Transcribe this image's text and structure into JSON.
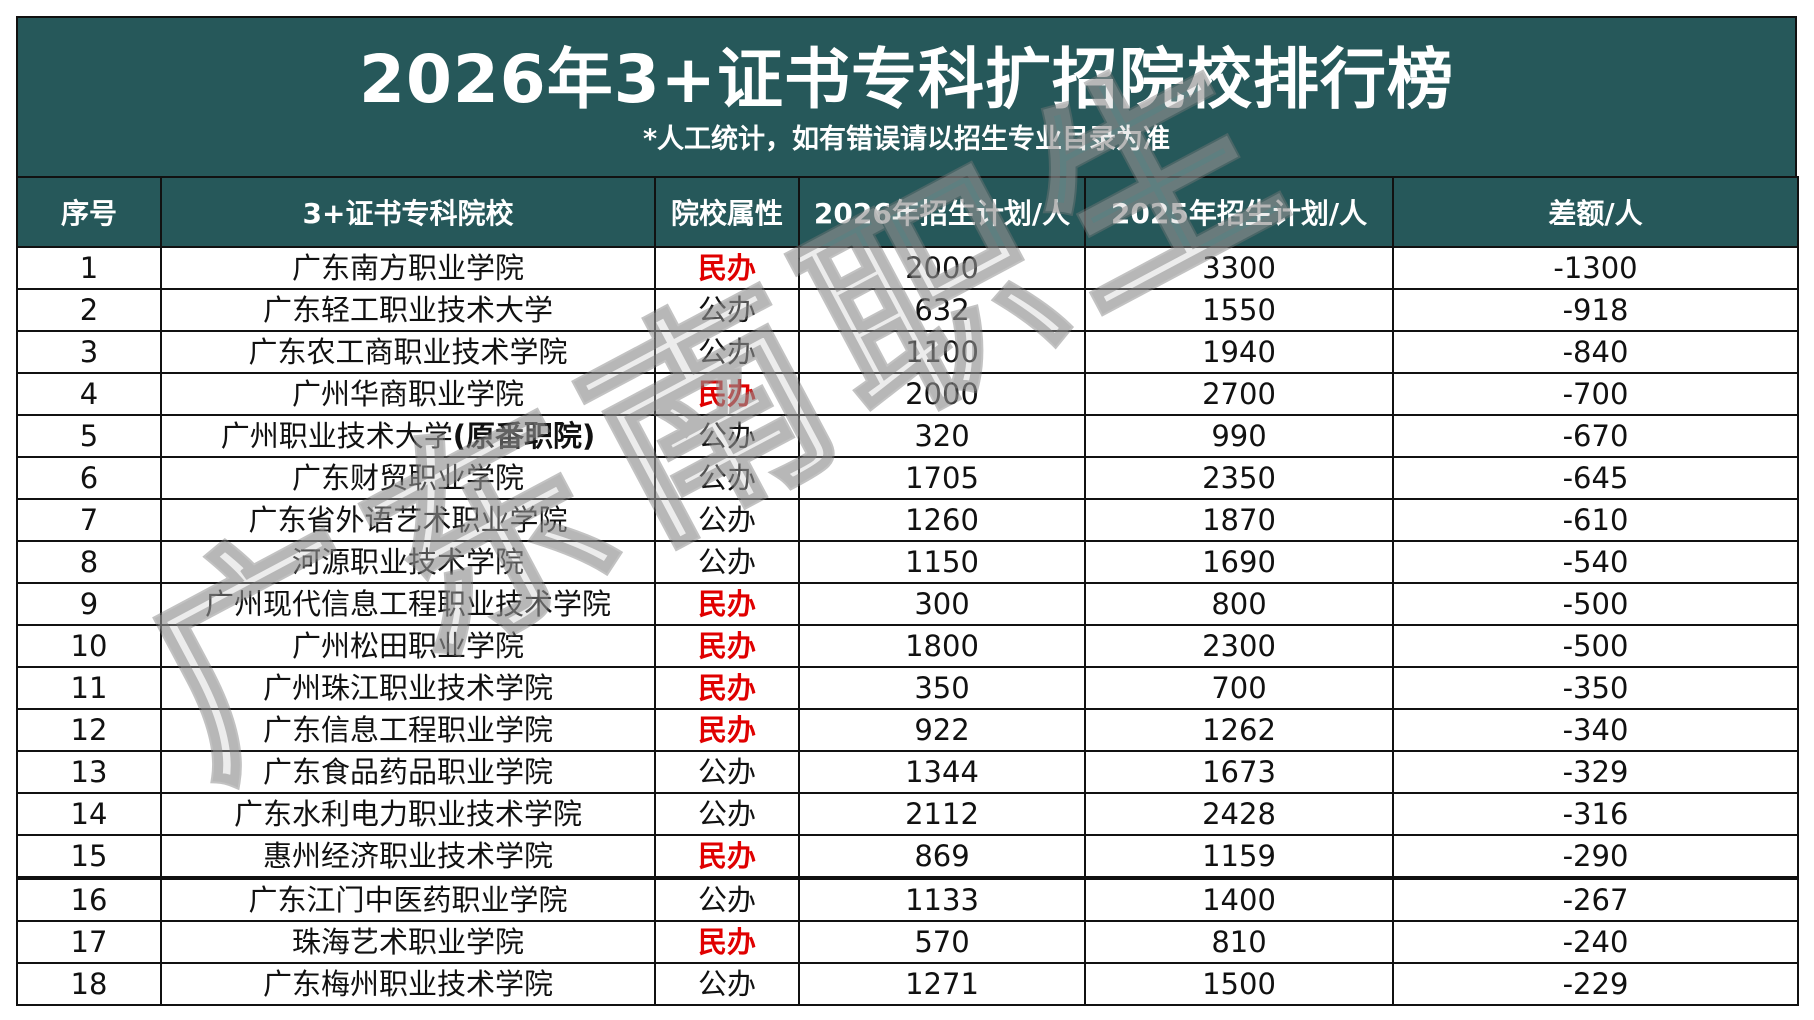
{
  "header": {
    "title": "2026年3+证书专科扩招院校排行榜",
    "subtitle": "*人工统计，如有错误请以招生专业目录为准"
  },
  "table": {
    "columns": [
      "序号",
      "3+证书专科院校",
      "院校属性",
      "2026年招生计划/人",
      "2025年招生计划/人",
      "差额/人"
    ],
    "rows": [
      {
        "no": "1",
        "school": "广东南方职业学院",
        "school_note": "",
        "type": "民办",
        "p2026": "2000",
        "p2025": "3300",
        "diff": "-1300"
      },
      {
        "no": "2",
        "school": "广东轻工职业技术大学",
        "school_note": "",
        "type": "公办",
        "p2026": "632",
        "p2025": "1550",
        "diff": "-918"
      },
      {
        "no": "3",
        "school": "广东农工商职业技术学院",
        "school_note": "",
        "type": "公办",
        "p2026": "1100",
        "p2025": "1940",
        "diff": "-840"
      },
      {
        "no": "4",
        "school": "广州华商职业学院",
        "school_note": "",
        "type": "民办",
        "p2026": "2000",
        "p2025": "2700",
        "diff": "-700"
      },
      {
        "no": "5",
        "school": "广州职业技术大学",
        "school_note": "(原番职院)",
        "type": "公办",
        "p2026": "320",
        "p2025": "990",
        "diff": "-670"
      },
      {
        "no": "6",
        "school": "广东财贸职业学院",
        "school_note": "",
        "type": "公办",
        "p2026": "1705",
        "p2025": "2350",
        "diff": "-645"
      },
      {
        "no": "7",
        "school": "广东省外语艺术职业学院",
        "school_note": "",
        "type": "公办",
        "p2026": "1260",
        "p2025": "1870",
        "diff": "-610"
      },
      {
        "no": "8",
        "school": "河源职业技术学院",
        "school_note": "",
        "type": "公办",
        "p2026": "1150",
        "p2025": "1690",
        "diff": "-540"
      },
      {
        "no": "9",
        "school": "广州现代信息工程职业技术学院",
        "school_note": "",
        "type": "民办",
        "p2026": "300",
        "p2025": "800",
        "diff": "-500"
      },
      {
        "no": "10",
        "school": "广州松田职业学院",
        "school_note": "",
        "type": "民办",
        "p2026": "1800",
        "p2025": "2300",
        "diff": "-500"
      },
      {
        "no": "11",
        "school": "广州珠江职业技术学院",
        "school_note": "",
        "type": "民办",
        "p2026": "350",
        "p2025": "700",
        "diff": "-350"
      },
      {
        "no": "12",
        "school": "广东信息工程职业学院",
        "school_note": "",
        "type": "民办",
        "p2026": "922",
        "p2025": "1262",
        "diff": "-340"
      },
      {
        "no": "13",
        "school": "广东食品药品职业学院",
        "school_note": "",
        "type": "公办",
        "p2026": "1344",
        "p2025": "1673",
        "diff": "-329"
      },
      {
        "no": "14",
        "school": "广东水利电力职业技术学院",
        "school_note": "",
        "type": "公办",
        "p2026": "2112",
        "p2025": "2428",
        "diff": "-316"
      },
      {
        "no": "15",
        "school": "惠州经济职业技术学院",
        "school_note": "",
        "type": "民办",
        "p2026": "869",
        "p2025": "1159",
        "diff": "-290"
      },
      {
        "no": "16",
        "school": "广东江门中医药职业学院",
        "school_note": "",
        "type": "公办",
        "p2026": "1133",
        "p2025": "1400",
        "diff": "-267"
      },
      {
        "no": "17",
        "school": "珠海艺术职业学院",
        "school_note": "",
        "type": "民办",
        "p2026": "570",
        "p2025": "810",
        "diff": "-240"
      },
      {
        "no": "18",
        "school": "广东梅州职业技术学院",
        "school_note": "",
        "type": "公办",
        "p2026": "1271",
        "p2025": "1500",
        "diff": "-229"
      }
    ]
  },
  "watermark": "广东南职生",
  "colors": {
    "header_bg": "#26585a",
    "private_school": "#e00000"
  }
}
